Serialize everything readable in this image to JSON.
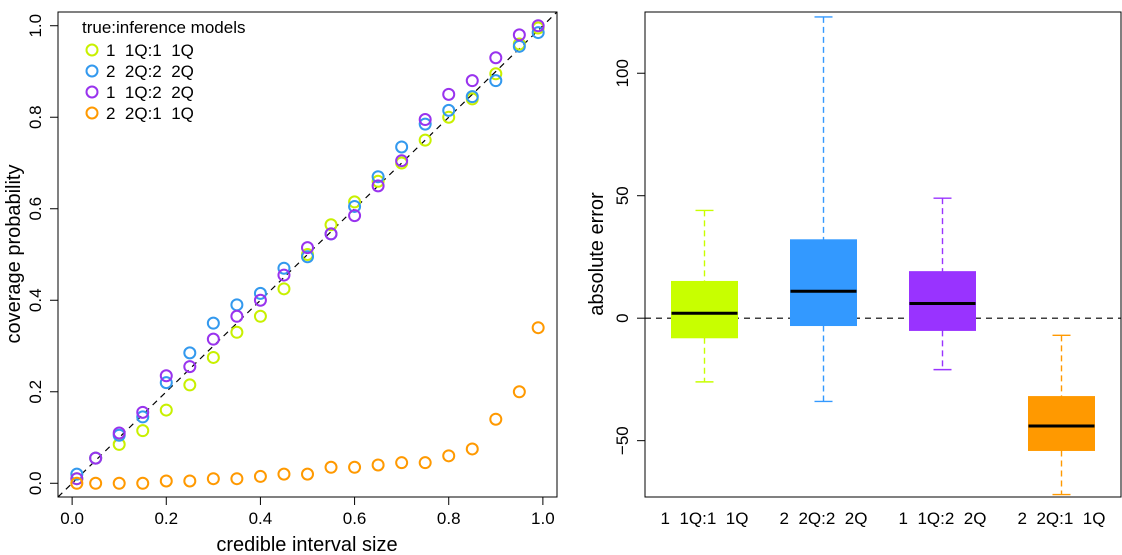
{
  "chart_data": [
    {
      "type": "scatter",
      "title": "",
      "xlabel": "credible interval size",
      "ylabel": "coverage probability",
      "xlim": [
        -0.03,
        1.03
      ],
      "ylim": [
        -0.03,
        1.03
      ],
      "xticks": [
        "0.0",
        "0.2",
        "0.4",
        "0.6",
        "0.8",
        "1.0"
      ],
      "yticks": [
        "0.0",
        "0.2",
        "0.4",
        "0.6",
        "0.8",
        "1.0"
      ],
      "reference_line": "y = x (dashed)",
      "legend": {
        "title": "true:inference models",
        "placement": "top-left",
        "entries": [
          "1  1Q:1  1Q",
          "2  2Q:2  2Q",
          "1  1Q:2  2Q",
          "2  2Q:1  1Q"
        ]
      },
      "x": [
        0.01,
        0.05,
        0.1,
        0.15,
        0.2,
        0.25,
        0.3,
        0.35,
        0.4,
        0.45,
        0.5,
        0.55,
        0.6,
        0.65,
        0.7,
        0.75,
        0.8,
        0.85,
        0.9,
        0.95,
        0.99
      ],
      "series": [
        {
          "name": "1  1Q:1  1Q",
          "color": "#c8f000",
          "values": [
            0.01,
            0.055,
            0.085,
            0.115,
            0.16,
            0.215,
            0.275,
            0.33,
            0.365,
            0.425,
            0.5,
            0.565,
            0.615,
            0.66,
            0.7,
            0.75,
            0.8,
            0.84,
            0.895,
            0.96,
            0.995
          ]
        },
        {
          "name": "2  2Q:2  2Q",
          "color": "#3399ee",
          "values": [
            0.02,
            0.055,
            0.105,
            0.145,
            0.22,
            0.285,
            0.35,
            0.39,
            0.415,
            0.47,
            0.495,
            0.545,
            0.605,
            0.67,
            0.735,
            0.785,
            0.815,
            0.845,
            0.88,
            0.955,
            0.985
          ]
        },
        {
          "name": "1  1Q:2  2Q",
          "color": "#9933ee",
          "values": [
            0.01,
            0.055,
            0.11,
            0.155,
            0.235,
            0.255,
            0.315,
            0.365,
            0.4,
            0.455,
            0.515,
            0.545,
            0.585,
            0.65,
            0.705,
            0.795,
            0.85,
            0.88,
            0.93,
            0.98,
            1.0
          ]
        },
        {
          "name": "2  2Q:1  1Q",
          "color": "#ff9900",
          "values": [
            0.0,
            0.0,
            0.0,
            0.0,
            0.005,
            0.005,
            0.01,
            0.01,
            0.015,
            0.02,
            0.02,
            0.035,
            0.035,
            0.04,
            0.045,
            0.045,
            0.06,
            0.075,
            0.14,
            0.2,
            0.34
          ]
        }
      ]
    },
    {
      "type": "box",
      "title": "",
      "xlabel": "",
      "ylabel": "absolute error",
      "ylim": [
        -73,
        125
      ],
      "yticks": [
        -50,
        0,
        50,
        100
      ],
      "reference_line": "y = 0 (dashed)",
      "categories": [
        "1  1Q:1  1Q",
        "2  2Q:2  2Q",
        "1  1Q:2  2Q",
        "2  2Q:1  1Q"
      ],
      "boxes": [
        {
          "color": "#c8ff00",
          "whisker_low": -26,
          "q1": -8,
          "median": 2,
          "q3": 15,
          "whisker_high": 44
        },
        {
          "color": "#3399ff",
          "whisker_low": -34,
          "q1": -3,
          "median": 11,
          "q3": 32,
          "whisker_high": 123
        },
        {
          "color": "#9933ff",
          "whisker_low": -21,
          "q1": -5,
          "median": 6,
          "q3": 19,
          "whisker_high": 49
        },
        {
          "color": "#ff9900",
          "whisker_low": -72,
          "q1": -54,
          "median": -44,
          "q3": -32,
          "whisker_high": -7
        }
      ]
    }
  ]
}
